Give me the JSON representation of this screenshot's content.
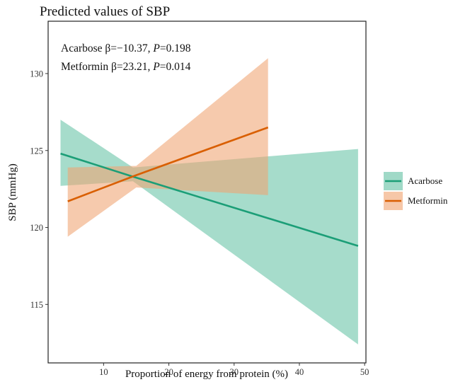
{
  "chart_data": {
    "type": "line",
    "title": "Predicted values of SBP",
    "xlabel": "Proportion of energy from protein (%)",
    "ylabel": "SBP (mmHg)",
    "xlim": [
      1.5,
      50.2
    ],
    "ylim": [
      111.2,
      133.4
    ],
    "xticks": [
      10,
      20,
      30,
      40,
      50
    ],
    "yticks": [
      115,
      120,
      125,
      130
    ],
    "grid": false,
    "legend_position": "right",
    "annotations": [
      {
        "prefix": "Acarbose β=−10.37, ",
        "p_label": "P",
        "p_value": "=0.198"
      },
      {
        "prefix": "Metformin β=23.21, ",
        "p_label": "P",
        "p_value": "=0.014"
      }
    ],
    "series": [
      {
        "name": "Acarbose",
        "color": "#1b9e77",
        "fill_color": "#66c2a5",
        "x": [
          3.4,
          14.5,
          49.0
        ],
        "y": [
          124.8,
          123.3,
          118.8
        ],
        "ci_lower": [
          122.7,
          123.0,
          112.4
        ],
        "ci_upper": [
          127.0,
          123.9,
          125.1
        ]
      },
      {
        "name": "Metformin",
        "color": "#d95f02",
        "fill_color": "#f0a472",
        "x": [
          4.5,
          15.0,
          35.2
        ],
        "y": [
          121.7,
          123.4,
          126.5
        ],
        "ci_lower": [
          119.4,
          122.6,
          122.1
        ],
        "ci_upper": [
          123.9,
          124.0,
          131.0
        ]
      }
    ]
  }
}
